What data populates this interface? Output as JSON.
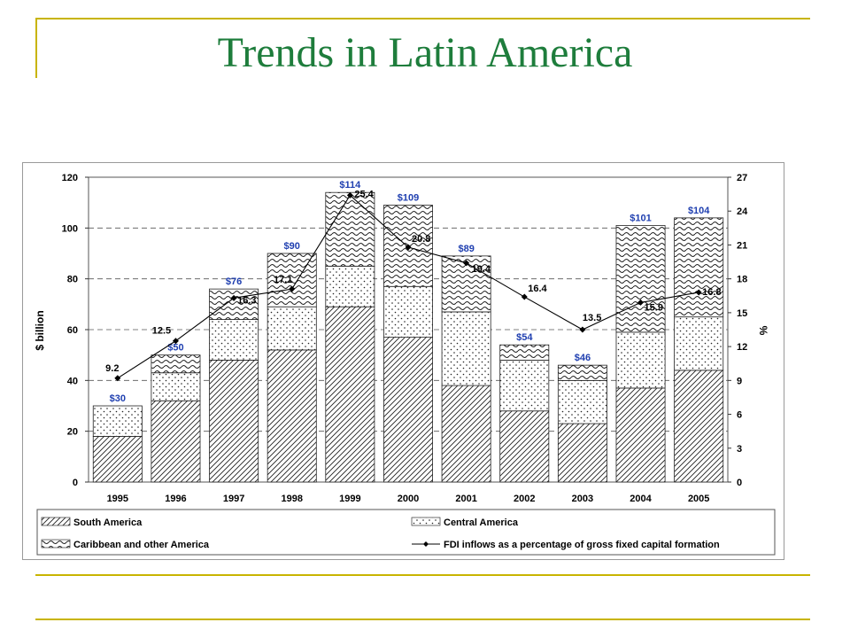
{
  "slide": {
    "title": "Trends in Latin America"
  },
  "colors": {
    "title": "#1e7d3c",
    "decor_line": "#c8b400",
    "bar_total_label": "#1f3fb0"
  },
  "chart_data": {
    "type": "bar",
    "stacked": true,
    "categories": [
      "1995",
      "1996",
      "1997",
      "1998",
      "1999",
      "2000",
      "2001",
      "2002",
      "2003",
      "2004",
      "2005"
    ],
    "ylabel": "$ billion",
    "y2label": "%",
    "ylim": [
      0,
      120
    ],
    "y2lim": [
      0,
      27
    ],
    "yticks": [
      "0",
      "20",
      "40",
      "60",
      "80",
      "100",
      "120"
    ],
    "y2ticks": [
      "0",
      "3",
      "6",
      "9",
      "12",
      "15",
      "18",
      "21",
      "24",
      "27"
    ],
    "grid": "dashed horizontal",
    "legend_position": "bottom",
    "series": [
      {
        "name": "South America",
        "pattern": "diagonal-hatch",
        "values": [
          18,
          32,
          48,
          52,
          69,
          57,
          38,
          28,
          23,
          37,
          44
        ]
      },
      {
        "name": "Central America",
        "pattern": "dots",
        "values": [
          12,
          11,
          16,
          17,
          16,
          20,
          29,
          20,
          17,
          22,
          21
        ]
      },
      {
        "name": "Caribbean and other America",
        "pattern": "waves",
        "values": [
          0,
          7,
          12,
          21,
          29,
          32,
          22,
          6,
          6,
          42,
          39
        ]
      }
    ],
    "totals": [
      "$30",
      "$50",
      "$76",
      "$90",
      "$114",
      "$109",
      "$89",
      "$54",
      "$46",
      "$101",
      "$104"
    ],
    "line_series": {
      "name": "FDI inflows as a percentage of gross fixed capital formation",
      "values": [
        9.2,
        12.5,
        16.3,
        17.1,
        25.4,
        20.8,
        19.4,
        16.4,
        13.5,
        15.9,
        16.8
      ],
      "labels": [
        "9.2",
        "12.5",
        "16.3",
        "17.1",
        "25.4",
        "20.8",
        "19.4",
        "16.4",
        "13.5",
        "15.9",
        "16.8"
      ]
    }
  }
}
